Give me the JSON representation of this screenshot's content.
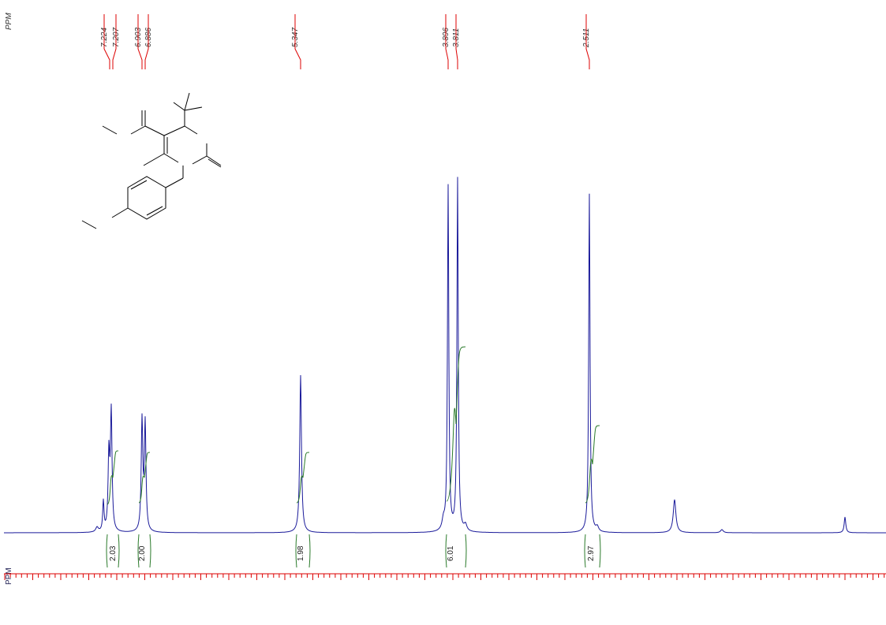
{
  "axis_label_top": "PPM",
  "axis_label_bottom": "PPM",
  "peak_labels": [
    "7.224",
    "7.207",
    "6.903",
    "6.886",
    "5.347",
    "3.896",
    "3.811",
    "2.511"
  ],
  "integrals": [
    "2.03",
    "2.00",
    "1.98",
    "6.01",
    "2.97"
  ]
}
